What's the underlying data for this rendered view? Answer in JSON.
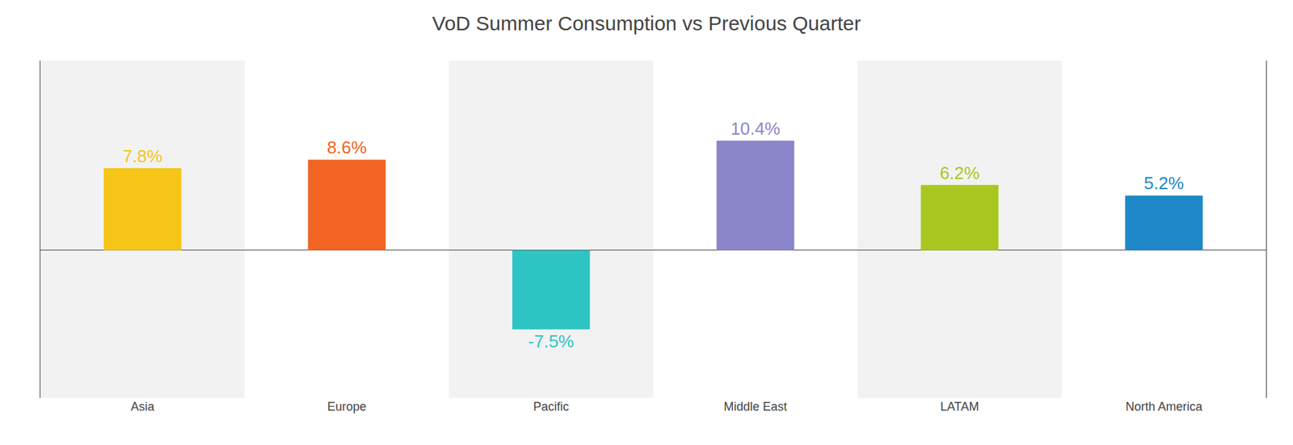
{
  "chart_data": {
    "type": "bar",
    "title": "VoD Summer Consumption vs Previous Quarter",
    "categories": [
      "Asia",
      "Europe",
      "Pacific",
      "Middle East",
      "LATAM",
      "North America"
    ],
    "values": [
      7.8,
      8.6,
      -7.5,
      10.4,
      6.2,
      5.2
    ],
    "value_labels": [
      "7.8%",
      "8.6%",
      "-7.5%",
      "10.4%",
      "6.2%",
      "5.2%"
    ],
    "colors": [
      "#f5c518",
      "#f26522",
      "#2ec4c4",
      "#8b85c9",
      "#a8c820",
      "#1e88c8"
    ],
    "ylim": [
      -14,
      18
    ],
    "grid": false,
    "data_labels": true,
    "tick_labels": "x"
  }
}
